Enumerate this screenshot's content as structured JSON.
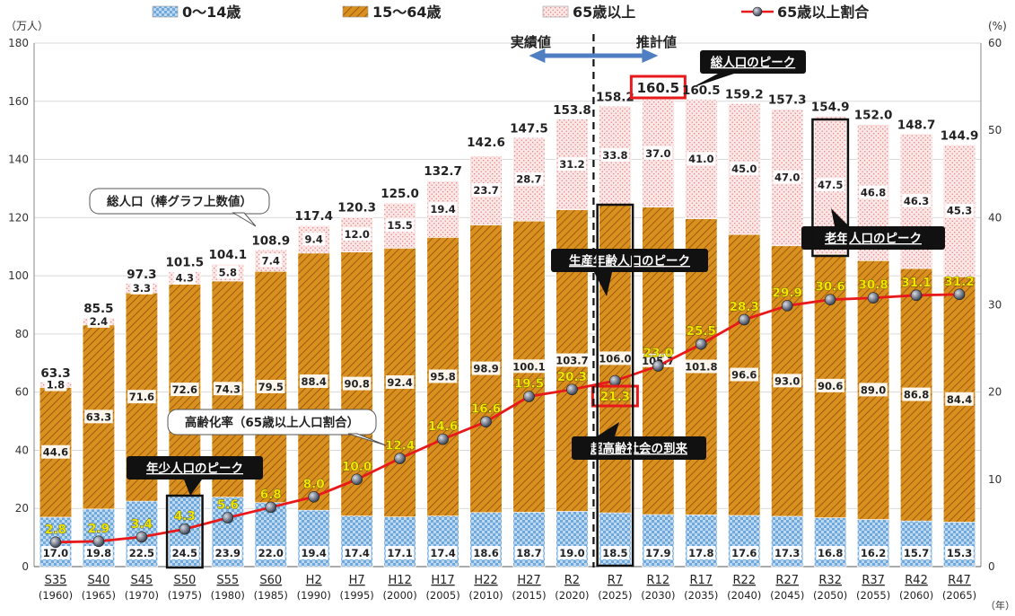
{
  "chart_data": {
    "type": "bar",
    "stacked": true,
    "y_unit_left": "（万人）",
    "y_unit_right": "(%)",
    "x_unit": "（年）",
    "ylim_left": [
      0,
      180
    ],
    "ylim_right": [
      0,
      60
    ],
    "yticks_left": [
      0,
      20,
      40,
      60,
      80,
      100,
      120,
      140,
      160,
      180
    ],
    "yticks_right": [
      0,
      10,
      20,
      30,
      40,
      50,
      60
    ],
    "categories": [
      "S35",
      "S40",
      "S45",
      "S50",
      "S55",
      "S60",
      "H2",
      "H7",
      "H12",
      "H17",
      "H22",
      "H27",
      "R2",
      "R7",
      "R12",
      "R17",
      "R22",
      "R27",
      "R32",
      "R37",
      "R42",
      "R47"
    ],
    "years": [
      "(1960)",
      "(1965)",
      "(1970)",
      "(1975)",
      "(1980)",
      "(1985)",
      "(1990)",
      "(1995)",
      "(2000)",
      "(2005)",
      "(2010)",
      "(2015)",
      "(2020)",
      "(2025)",
      "(2030)",
      "(2035)",
      "(2040)",
      "(2045)",
      "(2050)",
      "(2055)",
      "(2060)",
      "(2065)"
    ],
    "series": [
      {
        "name": "0～14歳",
        "color": "#5b9bd5",
        "values": [
          17.0,
          19.8,
          22.5,
          24.5,
          23.9,
          22.0,
          19.4,
          17.4,
          17.1,
          17.4,
          18.6,
          18.7,
          19.0,
          18.5,
          17.9,
          17.8,
          17.6,
          17.3,
          16.8,
          16.2,
          15.7,
          15.3
        ]
      },
      {
        "name": "15～64歳",
        "color": "#d48a1f",
        "values": [
          44.6,
          63.3,
          71.6,
          72.6,
          74.3,
          79.5,
          88.4,
          90.8,
          92.4,
          95.8,
          98.9,
          100.1,
          103.7,
          106.0,
          105.7,
          101.8,
          96.6,
          93.0,
          90.6,
          89.0,
          86.8,
          84.4
        ]
      },
      {
        "name": "65歳以上",
        "color": "#f8d4d4",
        "values": [
          1.8,
          2.4,
          3.3,
          4.3,
          5.8,
          7.4,
          9.4,
          12.0,
          15.5,
          19.4,
          23.7,
          28.7,
          31.2,
          33.8,
          37.0,
          41.0,
          45.0,
          47.0,
          47.5,
          46.8,
          46.3,
          45.3
        ]
      }
    ],
    "totals": [
      63.3,
      85.5,
      97.3,
      101.5,
      104.1,
      108.9,
      117.4,
      120.3,
      125.0,
      132.7,
      142.6,
      147.5,
      153.8,
      158.2,
      160.5,
      160.5,
      159.2,
      157.3,
      154.9,
      152.0,
      148.7,
      144.9
    ],
    "line": {
      "name": "65歳以上割合",
      "color": "#e8191b",
      "values": [
        2.8,
        2.9,
        3.4,
        4.3,
        5.6,
        6.8,
        8.0,
        10.0,
        12.4,
        14.6,
        16.6,
        19.5,
        20.3,
        21.3,
        23.0,
        25.5,
        28.3,
        29.9,
        30.6,
        30.8,
        31.1,
        31.2
      ]
    },
    "annotations": {
      "actual": "実績値",
      "estimate": "推計値",
      "total_peak": "総人口のピーク",
      "total_label": "総人口（棒グラフ上数値）",
      "aging_rate": "高齢化率（65歳以上人口割合）",
      "child_peak": "年少人口のピーク",
      "working_peak": "生産年齢人口のピーク",
      "super_aged": "超高齢社会の到来",
      "elderly_peak": "老年人口のピーク"
    }
  }
}
